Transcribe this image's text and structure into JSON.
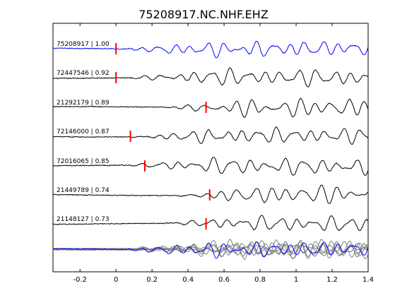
{
  "figure": {
    "background": "#ffffff"
  },
  "chart_data": {
    "type": "line",
    "title": "75208917.NC.NHF.EHZ",
    "xlabel": "",
    "ylabel": "",
    "xlim": [
      -0.35,
      1.4
    ],
    "x_ticks": [
      -0.2,
      0,
      0.2,
      0.4,
      0.6,
      0.8,
      1,
      1.2,
      1.4
    ],
    "x_tick_labels": [
      "-0.2",
      "0",
      "0.2",
      "0.4",
      "0.6",
      "0.8",
      "1",
      "1.2",
      "1.4"
    ],
    "grid": false,
    "colors": {
      "reference": "#0000ff",
      "trace": "#000000",
      "pick": "#ff0000",
      "overlay": "#808080"
    },
    "traces": [
      {
        "label": "75208917 | 1.00",
        "event_id": "75208917",
        "correlation": 1.0,
        "pick_time": 0.0,
        "color": "#0000ff"
      },
      {
        "label": "72447546 | 0.92",
        "event_id": "72447546",
        "correlation": 0.92,
        "pick_time": 0.0,
        "color": "#000000"
      },
      {
        "label": "21292179 | 0.89",
        "event_id": "21292179",
        "correlation": 0.89,
        "pick_time": 0.5,
        "color": "#000000"
      },
      {
        "label": "72146000 | 0.87",
        "event_id": "72146000",
        "correlation": 0.87,
        "pick_time": 0.08,
        "color": "#000000"
      },
      {
        "label": "72016065 | 0.85",
        "event_id": "72016065",
        "correlation": 0.85,
        "pick_time": 0.16,
        "color": "#000000"
      },
      {
        "label": "21449789 | 0.74",
        "event_id": "21449789",
        "correlation": 0.74,
        "pick_time": 0.52,
        "color": "#000000"
      },
      {
        "label": "21148127 | 0.73",
        "event_id": "21148127",
        "correlation": 0.73,
        "pick_time": 0.5,
        "color": "#000000"
      }
    ],
    "stack": {
      "overlay_color": "#808080",
      "reference_color": "#0000ff"
    }
  }
}
